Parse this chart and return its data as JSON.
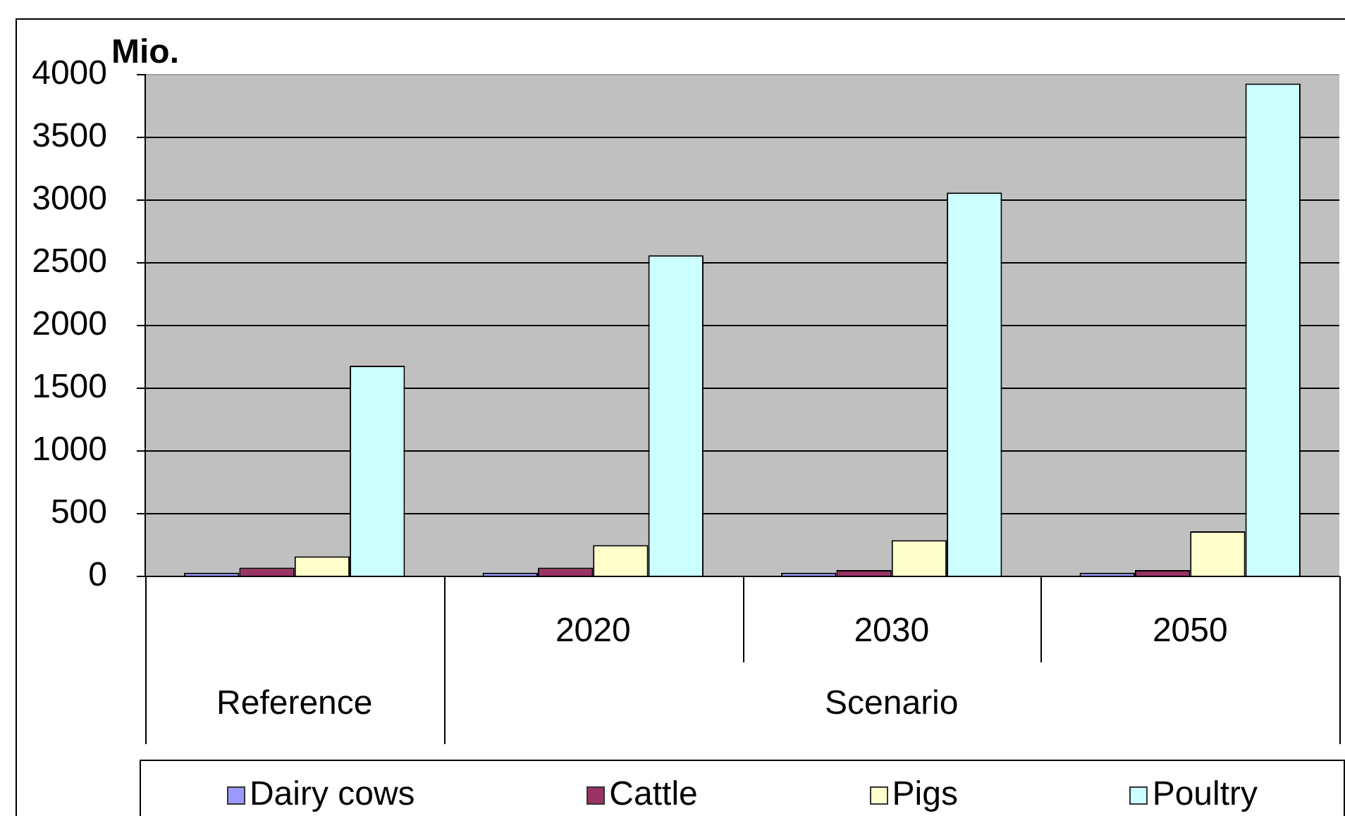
{
  "chart_data": {
    "type": "bar",
    "ylabel": "Mio.",
    "categories": [
      null,
      "2020",
      "2030",
      "2050"
    ],
    "annotations": [
      "Reference",
      "Scenario"
    ],
    "series": [
      {
        "name": "Dairy cows",
        "color": "#9999ff",
        "values": [
          30,
          30,
          30,
          30
        ]
      },
      {
        "name": "Cattle",
        "color": "#993366",
        "values": [
          70,
          70,
          50,
          50
        ]
      },
      {
        "name": "Pigs",
        "color": "#ffffcc",
        "values": [
          160,
          250,
          290,
          360
        ]
      },
      {
        "name": "Poultry",
        "color": "#ccffff",
        "values": [
          1680,
          2560,
          3060,
          3930
        ]
      }
    ],
    "ylim": [
      0,
      4000
    ],
    "yticks": [
      0,
      500,
      1000,
      1500,
      2000,
      2500,
      3000,
      3500,
      4000
    ],
    "grid": "y",
    "legend": "bottom"
  }
}
